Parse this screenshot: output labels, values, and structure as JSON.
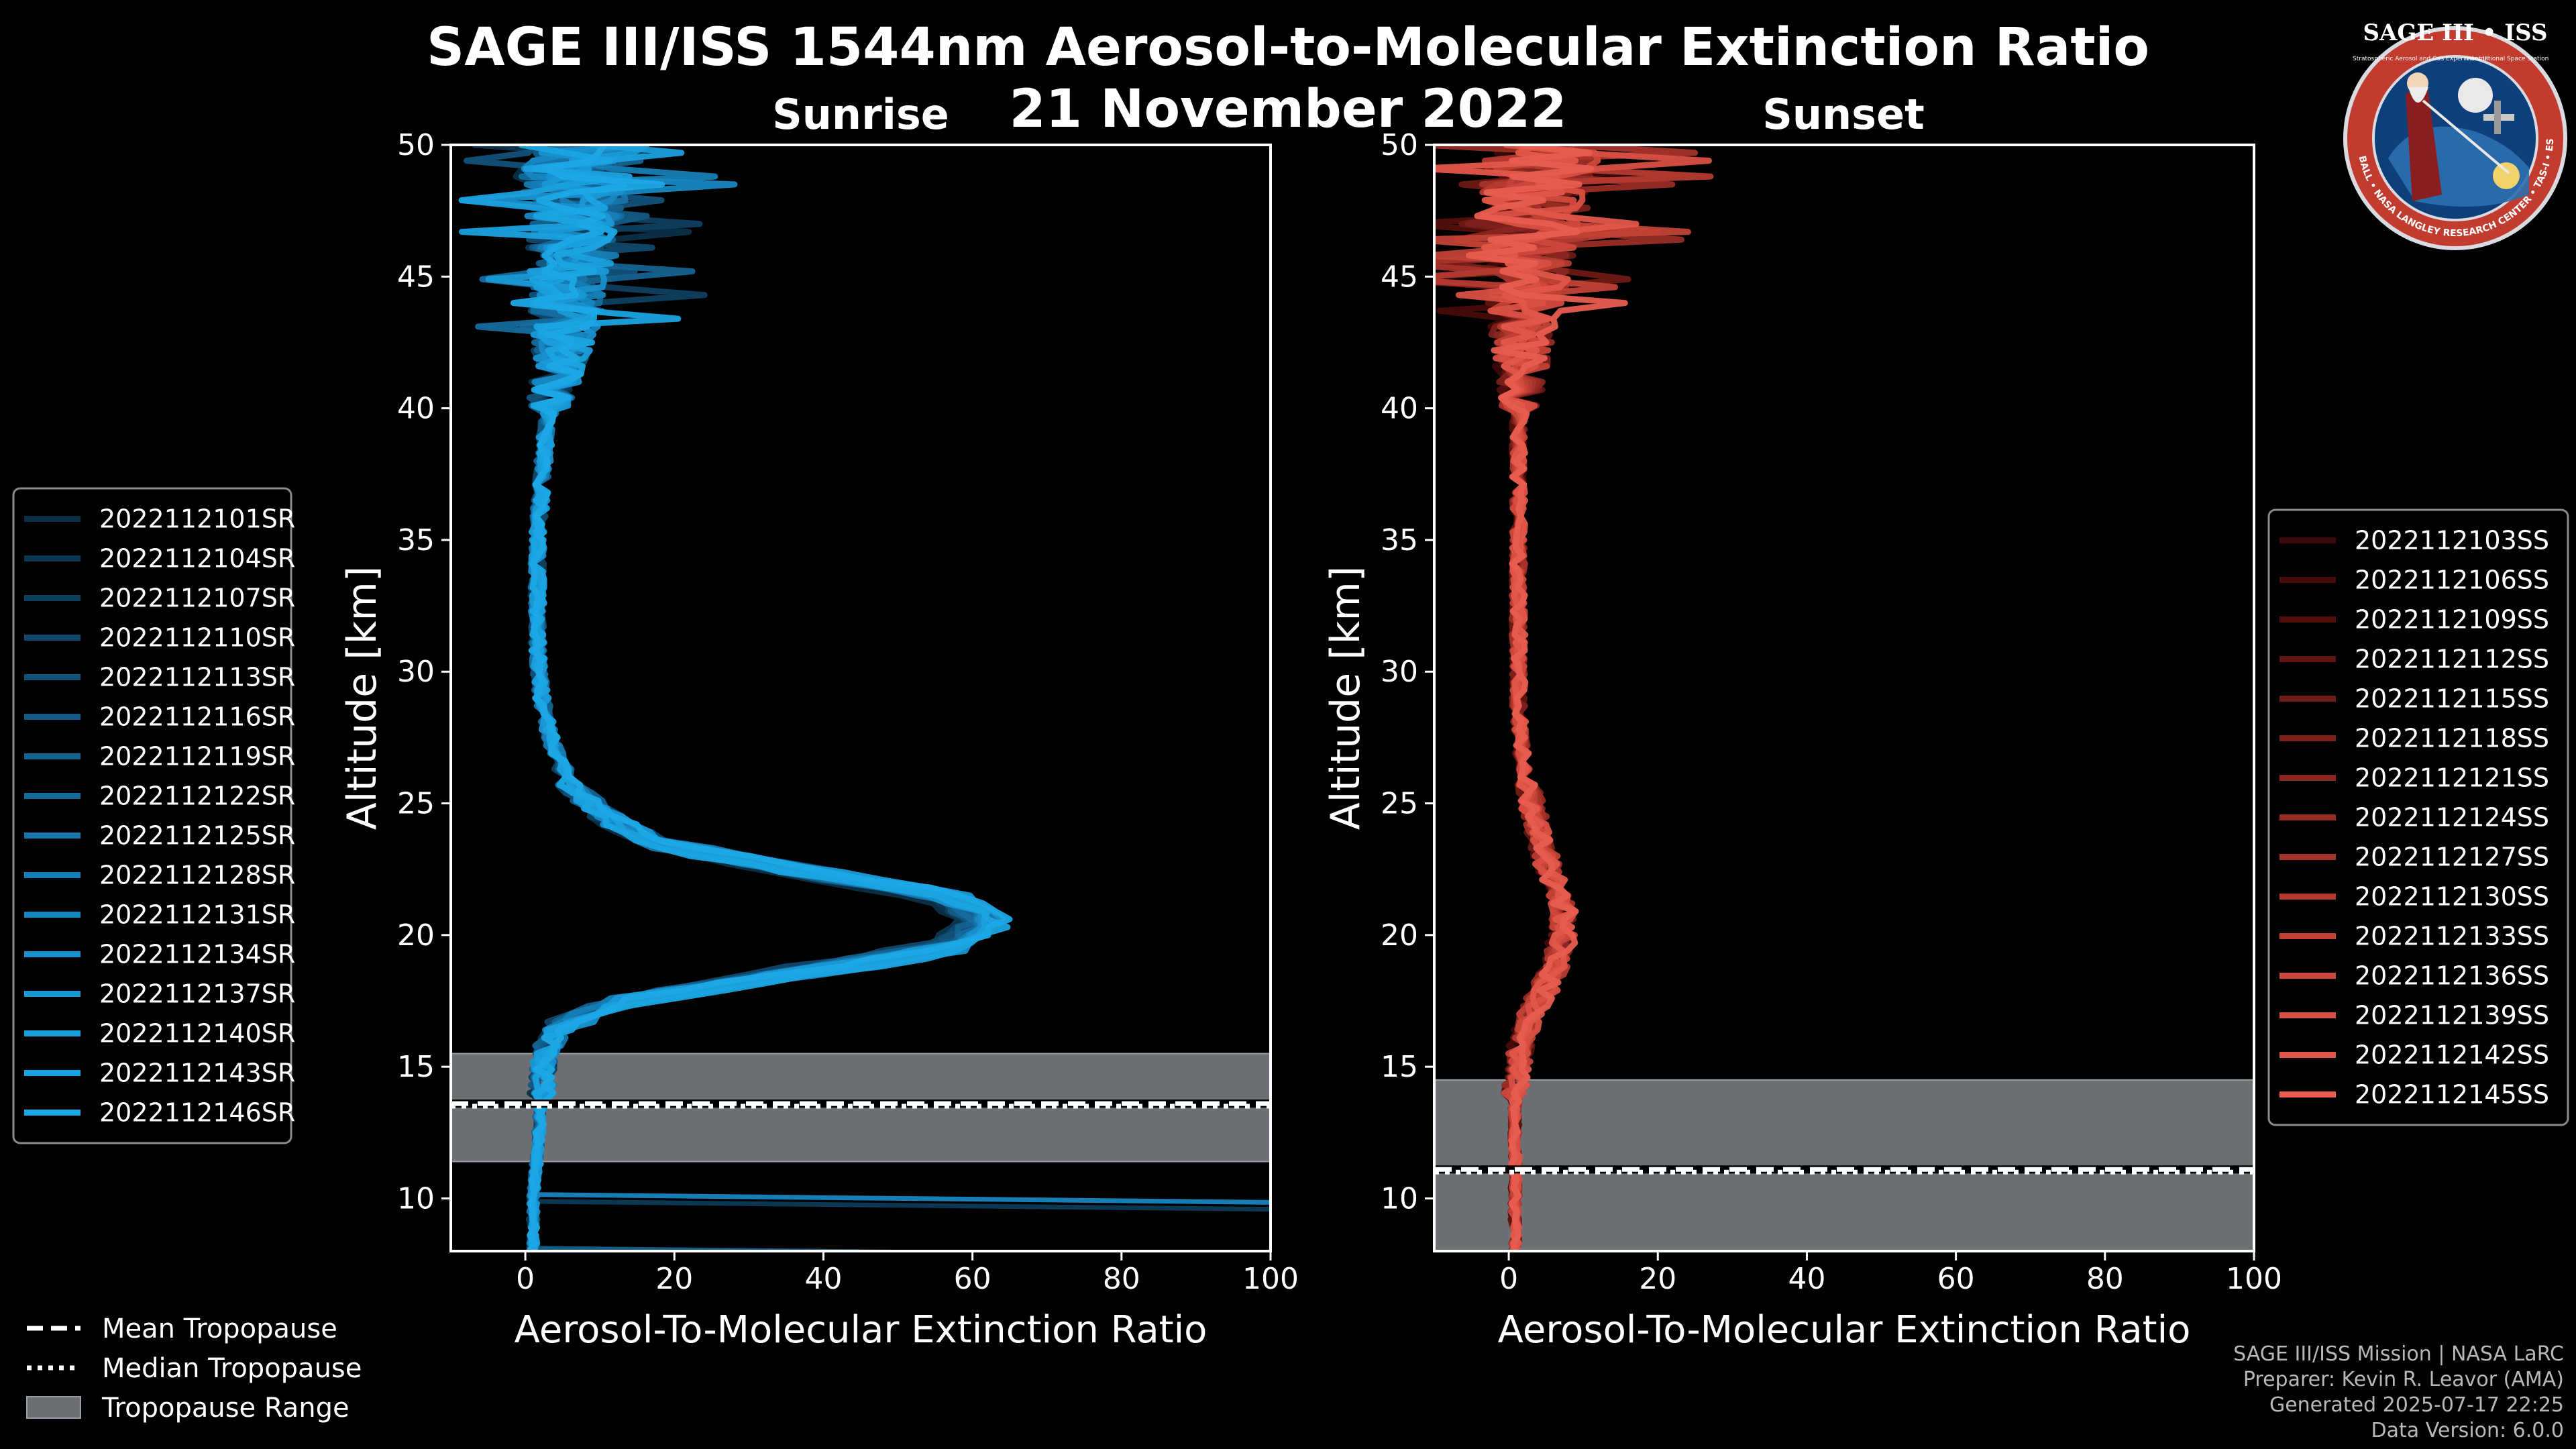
{
  "chart_data": [
    {
      "type": "line",
      "panel": "sunrise",
      "title": "Sunrise",
      "xlabel": "Aerosol-To-Molecular Extinction Ratio",
      "ylabel": "Altitude [km]",
      "xlim": [
        -10,
        100
      ],
      "ylim": [
        8,
        50
      ],
      "xticks": [
        0,
        20,
        40,
        60,
        80,
        100
      ],
      "yticks": [
        10,
        15,
        20,
        25,
        30,
        35,
        40,
        45,
        50
      ],
      "grid": false,
      "legend_position": "left",
      "tropopause": {
        "mean_km": 13.6,
        "median_km": 13.5,
        "range_km": [
          11.4,
          15.5
        ]
      },
      "reference_profile": {
        "altitude_km": [
          8,
          10,
          12,
          14,
          15.5,
          16.5,
          17.5,
          18.5,
          19.5,
          20.5,
          21.5,
          22.5,
          23.5,
          24.5,
          25.5,
          27,
          29,
          31,
          33,
          35,
          37,
          39,
          41,
          43,
          45,
          47,
          49,
          50
        ],
        "ratio": [
          1,
          1,
          1.5,
          2,
          2.5,
          4,
          12,
          32,
          52,
          57,
          52,
          33,
          16,
          10,
          6,
          3.5,
          2,
          1.5,
          1.5,
          1.5,
          2,
          2.5,
          3.5,
          5,
          5.5,
          6,
          7,
          7
        ]
      },
      "series": [
        {
          "name": "2022112101SR",
          "color": "#0a2f47"
        },
        {
          "name": "2022112104SR",
          "color": "#0c3752"
        },
        {
          "name": "2022112107SR",
          "color": "#0e405f"
        },
        {
          "name": "2022112110SR",
          "color": "#10486b"
        },
        {
          "name": "2022112113SR",
          "color": "#125178"
        },
        {
          "name": "2022112116SR",
          "color": "#135a84"
        },
        {
          "name": "2022112119SR",
          "color": "#146391"
        },
        {
          "name": "2022112122SR",
          "color": "#156c9e"
        },
        {
          "name": "2022112125SR",
          "color": "#1675aa"
        },
        {
          "name": "2022112128SR",
          "color": "#167eb6"
        },
        {
          "name": "2022112131SR",
          "color": "#1787c2"
        },
        {
          "name": "2022112134SR",
          "color": "#1890cd"
        },
        {
          "name": "2022112137SR",
          "color": "#1998d6"
        },
        {
          "name": "2022112140SR",
          "color": "#1a9fdd"
        },
        {
          "name": "2022112143SR",
          "color": "#1aa4e2"
        },
        {
          "name": "2022112146SR",
          "color": "#1ca8e6"
        }
      ]
    },
    {
      "type": "line",
      "panel": "sunset",
      "title": "Sunset",
      "xlabel": "Aerosol-To-Molecular Extinction Ratio",
      "ylabel": "Altitude [km]",
      "xlim": [
        -10,
        100
      ],
      "ylim": [
        8,
        50
      ],
      "xticks": [
        0,
        20,
        40,
        60,
        80,
        100
      ],
      "yticks": [
        10,
        15,
        20,
        25,
        30,
        35,
        40,
        45,
        50
      ],
      "grid": false,
      "legend_position": "right",
      "tropopause": {
        "mean_km": 11.1,
        "median_km": 11.0,
        "range_km": [
          8,
          14.5
        ]
      },
      "reference_profile": {
        "altitude_km": [
          8,
          10,
          12,
          14,
          16,
          17,
          18,
          19,
          20,
          21,
          22,
          23,
          24,
          25,
          27,
          29,
          31,
          33,
          35,
          37,
          39,
          41,
          43,
          45,
          47,
          49,
          50
        ],
        "ratio": [
          1,
          1,
          1,
          1,
          2,
          3.5,
          5.5,
          7.5,
          8.5,
          8.5,
          7,
          5.5,
          4.5,
          3.5,
          2,
          1.5,
          1.5,
          1.5,
          1.5,
          1.5,
          1.5,
          2,
          2,
          3,
          3.5,
          5,
          5
        ]
      },
      "series": [
        {
          "name": "2022112103SS",
          "color": "#3a0808"
        },
        {
          "name": "2022112106SS",
          "color": "#450b0a"
        },
        {
          "name": "2022112109SS",
          "color": "#520f0d"
        },
        {
          "name": "2022112112SS",
          "color": "#601411"
        },
        {
          "name": "2022112115SS",
          "color": "#6e1a15"
        },
        {
          "name": "2022112118SS",
          "color": "#7c201a"
        },
        {
          "name": "2022112121SS",
          "color": "#8a261f"
        },
        {
          "name": "2022112124SS",
          "color": "#982c24"
        },
        {
          "name": "2022112127SS",
          "color": "#a6332a"
        },
        {
          "name": "2022112130SS",
          "color": "#b43a30"
        },
        {
          "name": "2022112133SS",
          "color": "#c14136"
        },
        {
          "name": "2022112136SS",
          "color": "#cd483c"
        },
        {
          "name": "2022112139SS",
          "color": "#d84f43"
        },
        {
          "name": "2022112142SS",
          "color": "#e1564a"
        },
        {
          "name": "2022112145SS",
          "color": "#e85d50"
        }
      ]
    }
  ],
  "header": {
    "title": "SAGE III/ISS 1544nm Aerosol-to-Molecular Extinction Ratio",
    "date": "21 November 2022"
  },
  "tropopause_legend": {
    "mean": "Mean Tropopause",
    "median": "Median Tropopause",
    "range": "Tropopause Range",
    "range_color": "#6c6f73"
  },
  "footer": {
    "line1": "SAGE III/ISS Mission | NASA LaRC",
    "line2": "Preparer: Kevin R. Leavor (AMA)",
    "line3": "Generated 2025-07-17 22:25",
    "line4": "Data Version: 6.0.0"
  },
  "badge": {
    "top_text": "SAGE III • ISS",
    "sub_left": "Stratospheric Aerosol and Gas Experiment III",
    "sub_right": "International Space Station",
    "ring_text": "BALL • NASA LANGLEY RESEARCH CENTER • TAS-I • ESA"
  }
}
